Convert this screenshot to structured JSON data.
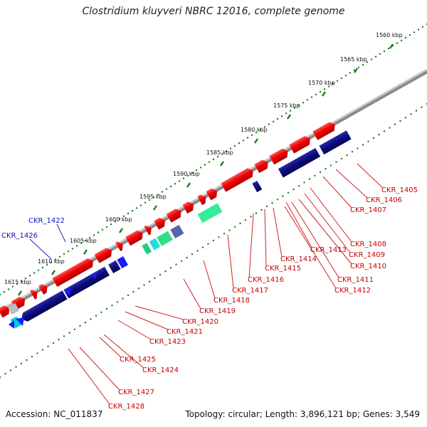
{
  "title": "Clostridium kluyveri NBRC 12016, complete genome",
  "footer": {
    "accession": "Accession: NC_011837",
    "summary": "Topology: circular; Length: 3,896,121 bp; Genes: 3,549"
  },
  "scale_labels": [
    "1560 kbp",
    "1565 kbp",
    "1570 kbp",
    "1575 kbp",
    "1580 kbp",
    "1585 kbp",
    "1590 kbp",
    "1595 kbp",
    "1600 kbp",
    "1605 kbp",
    "1610 kbp",
    "1615 kbp"
  ],
  "gene_labels_red": [
    "CKR_1405",
    "CKR_1406",
    "CKR_1407",
    "CKR_1408",
    "CKR_1409",
    "CKR_1410",
    "CKR_1411",
    "CKR_1412",
    "CKR_1413",
    "CKR_1414",
    "CKR_1415",
    "CKR_1416",
    "CKR_1417",
    "CKR_1418",
    "CKR_1419",
    "CKR_1420",
    "CKR_1421",
    "CKR_1423",
    "CKR_1424",
    "CKR_1425",
    "CKR_1427",
    "CKR_1428"
  ],
  "gene_labels_blue": [
    "CKR_1422",
    "CKR_1426"
  ],
  "colors": {
    "forward_gene": "#e60000",
    "reverse_gene": "#0a0a7a",
    "backbone": "#888888",
    "tick": "#1a7a1a",
    "label_red": "#c80000",
    "label_blue": "#1010c0"
  }
}
